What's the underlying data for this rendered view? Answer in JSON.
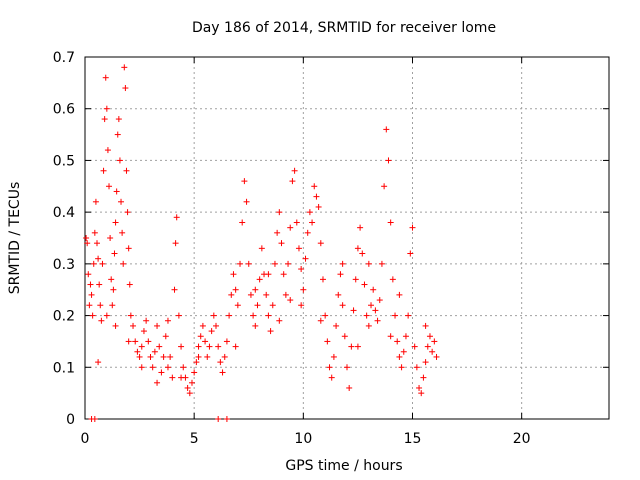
{
  "chart_data": {
    "type": "scatter",
    "title": "Day 186 of 2014, SRMTID for receiver lome",
    "xlabel": "GPS time / hours",
    "ylabel": "SRMTID / TECUs",
    "xlim": [
      0,
      24
    ],
    "ylim": [
      0,
      0.7
    ],
    "xticks": [
      0,
      5,
      10,
      15,
      20
    ],
    "yticks": [
      0,
      0.1,
      0.2,
      0.3,
      0.4,
      0.5,
      0.6,
      0.7
    ],
    "xtick_labels": [
      "0",
      "5",
      "10",
      "15",
      "20"
    ],
    "ytick_labels": [
      "0",
      "0.1",
      "0.2",
      "0.3",
      "0.4",
      "0.5",
      "0.6",
      "0.7"
    ],
    "grid": true,
    "marker": "+",
    "color": "#ff0000",
    "series": [
      {
        "name": "SRMTID",
        "points": [
          [
            0.05,
            0.35
          ],
          [
            0.1,
            0.34
          ],
          [
            0.15,
            0.28
          ],
          [
            0.2,
            0.22
          ],
          [
            0.25,
            0.26
          ],
          [
            0.3,
            0.24
          ],
          [
            0.35,
            0.2
          ],
          [
            0.4,
            0.3
          ],
          [
            0.45,
            0.36
          ],
          [
            0.5,
            0.42
          ],
          [
            0.55,
            0.34
          ],
          [
            0.6,
            0.31
          ],
          [
            0.65,
            0.26
          ],
          [
            0.7,
            0.22
          ],
          [
            0.75,
            0.19
          ],
          [
            0.8,
            0.3
          ],
          [
            0.85,
            0.48
          ],
          [
            0.9,
            0.58
          ],
          [
            0.95,
            0.66
          ],
          [
            1.0,
            0.6
          ],
          [
            1.05,
            0.52
          ],
          [
            1.1,
            0.45
          ],
          [
            1.15,
            0.35
          ],
          [
            1.2,
            0.27
          ],
          [
            1.25,
            0.22
          ],
          [
            1.3,
            0.25
          ],
          [
            1.35,
            0.32
          ],
          [
            1.4,
            0.38
          ],
          [
            1.45,
            0.44
          ],
          [
            1.5,
            0.55
          ],
          [
            1.55,
            0.58
          ],
          [
            1.6,
            0.5
          ],
          [
            1.65,
            0.42
          ],
          [
            1.7,
            0.36
          ],
          [
            1.75,
            0.3
          ],
          [
            1.8,
            0.68
          ],
          [
            1.85,
            0.64
          ],
          [
            1.9,
            0.48
          ],
          [
            1.95,
            0.4
          ],
          [
            2.0,
            0.33
          ],
          [
            2.05,
            0.26
          ],
          [
            2.1,
            0.2
          ],
          [
            2.2,
            0.18
          ],
          [
            2.3,
            0.15
          ],
          [
            2.4,
            0.13
          ],
          [
            2.5,
            0.12
          ],
          [
            2.6,
            0.14
          ],
          [
            2.7,
            0.17
          ],
          [
            2.8,
            0.19
          ],
          [
            2.9,
            0.15
          ],
          [
            3.0,
            0.12
          ],
          [
            3.1,
            0.1
          ],
          [
            3.2,
            0.13
          ],
          [
            3.3,
            0.18
          ],
          [
            3.4,
            0.14
          ],
          [
            3.5,
            0.09
          ],
          [
            3.6,
            0.12
          ],
          [
            3.7,
            0.16
          ],
          [
            3.8,
            0.19
          ],
          [
            3.9,
            0.12
          ],
          [
            4.0,
            0.08
          ],
          [
            4.1,
            0.25
          ],
          [
            4.15,
            0.34
          ],
          [
            4.2,
            0.39
          ],
          [
            4.3,
            0.2
          ],
          [
            4.4,
            0.14
          ],
          [
            4.5,
            0.1
          ],
          [
            4.6,
            0.08
          ],
          [
            4.7,
            0.06
          ],
          [
            4.8,
            0.05
          ],
          [
            4.9,
            0.07
          ],
          [
            5.0,
            0.09
          ],
          [
            5.1,
            0.11
          ],
          [
            5.2,
            0.14
          ],
          [
            5.3,
            0.16
          ],
          [
            5.4,
            0.18
          ],
          [
            5.5,
            0.15
          ],
          [
            5.6,
            0.12
          ],
          [
            5.7,
            0.14
          ],
          [
            5.8,
            0.17
          ],
          [
            5.9,
            0.2
          ],
          [
            6.0,
            0.18
          ],
          [
            6.1,
            0.14
          ],
          [
            6.2,
            0.11
          ],
          [
            6.3,
            0.09
          ],
          [
            6.4,
            0.12
          ],
          [
            6.5,
            0.15
          ],
          [
            6.6,
            0.2
          ],
          [
            6.7,
            0.24
          ],
          [
            6.8,
            0.28
          ],
          [
            6.9,
            0.25
          ],
          [
            7.0,
            0.22
          ],
          [
            7.1,
            0.3
          ],
          [
            7.2,
            0.38
          ],
          [
            7.3,
            0.46
          ],
          [
            7.4,
            0.42
          ],
          [
            7.5,
            0.3
          ],
          [
            7.6,
            0.24
          ],
          [
            7.7,
            0.2
          ],
          [
            7.8,
            0.18
          ],
          [
            7.9,
            0.22
          ],
          [
            8.0,
            0.27
          ],
          [
            8.1,
            0.33
          ],
          [
            8.2,
            0.28
          ],
          [
            8.3,
            0.24
          ],
          [
            8.4,
            0.2
          ],
          [
            8.5,
            0.17
          ],
          [
            8.6,
            0.22
          ],
          [
            8.7,
            0.3
          ],
          [
            8.8,
            0.36
          ],
          [
            8.9,
            0.4
          ],
          [
            9.0,
            0.34
          ],
          [
            9.1,
            0.28
          ],
          [
            9.2,
            0.24
          ],
          [
            9.3,
            0.3
          ],
          [
            9.4,
            0.37
          ],
          [
            9.5,
            0.46
          ],
          [
            9.6,
            0.48
          ],
          [
            9.7,
            0.38
          ],
          [
            9.8,
            0.33
          ],
          [
            9.9,
            0.29
          ],
          [
            10.0,
            0.25
          ],
          [
            10.1,
            0.31
          ],
          [
            10.2,
            0.36
          ],
          [
            10.3,
            0.4
          ],
          [
            10.4,
            0.38
          ],
          [
            10.5,
            0.45
          ],
          [
            10.6,
            0.43
          ],
          [
            10.7,
            0.41
          ],
          [
            10.8,
            0.34
          ],
          [
            10.9,
            0.27
          ],
          [
            11.0,
            0.2
          ],
          [
            11.1,
            0.15
          ],
          [
            11.2,
            0.1
          ],
          [
            11.3,
            0.08
          ],
          [
            11.4,
            0.12
          ],
          [
            11.5,
            0.18
          ],
          [
            11.6,
            0.24
          ],
          [
            11.7,
            0.28
          ],
          [
            11.8,
            0.22
          ],
          [
            11.9,
            0.16
          ],
          [
            12.0,
            0.1
          ],
          [
            12.1,
            0.06
          ],
          [
            12.2,
            0.14
          ],
          [
            12.3,
            0.21
          ],
          [
            12.4,
            0.27
          ],
          [
            12.5,
            0.33
          ],
          [
            12.6,
            0.37
          ],
          [
            12.7,
            0.32
          ],
          [
            12.8,
            0.26
          ],
          [
            12.9,
            0.2
          ],
          [
            13.0,
            0.18
          ],
          [
            13.1,
            0.22
          ],
          [
            13.2,
            0.25
          ],
          [
            13.3,
            0.21
          ],
          [
            13.4,
            0.19
          ],
          [
            13.5,
            0.23
          ],
          [
            13.6,
            0.3
          ],
          [
            13.7,
            0.45
          ],
          [
            13.8,
            0.56
          ],
          [
            13.9,
            0.5
          ],
          [
            14.0,
            0.38
          ],
          [
            14.1,
            0.27
          ],
          [
            14.2,
            0.2
          ],
          [
            14.3,
            0.15
          ],
          [
            14.4,
            0.12
          ],
          [
            14.5,
            0.1
          ],
          [
            14.6,
            0.13
          ],
          [
            14.7,
            0.16
          ],
          [
            14.8,
            0.2
          ],
          [
            14.9,
            0.32
          ],
          [
            15.0,
            0.37
          ],
          [
            15.1,
            0.14
          ],
          [
            15.2,
            0.1
          ],
          [
            15.3,
            0.06
          ],
          [
            15.4,
            0.05
          ],
          [
            15.5,
            0.08
          ],
          [
            15.6,
            0.11
          ],
          [
            15.7,
            0.14
          ],
          [
            15.8,
            0.16
          ],
          [
            15.9,
            0.13
          ],
          [
            16.0,
            0.15
          ],
          [
            16.1,
            0.12
          ],
          [
            0.3,
            0.0
          ],
          [
            0.45,
            0.0
          ],
          [
            6.1,
            0.0
          ],
          [
            6.5,
            0.0
          ],
          [
            1.0,
            0.2
          ],
          [
            2.6,
            0.1
          ],
          [
            3.8,
            0.1
          ],
          [
            4.4,
            0.08
          ],
          [
            5.2,
            0.12
          ],
          [
            7.8,
            0.25
          ],
          [
            8.9,
            0.19
          ],
          [
            9.4,
            0.23
          ],
          [
            10.8,
            0.19
          ],
          [
            11.8,
            0.3
          ],
          [
            13.0,
            0.3
          ],
          [
            14.4,
            0.24
          ],
          [
            15.6,
            0.18
          ],
          [
            1.4,
            0.18
          ],
          [
            0.6,
            0.11
          ],
          [
            2.0,
            0.15
          ],
          [
            3.3,
            0.07
          ],
          [
            6.9,
            0.14
          ],
          [
            8.4,
            0.28
          ],
          [
            9.9,
            0.22
          ],
          [
            12.5,
            0.14
          ],
          [
            14.0,
            0.16
          ]
        ]
      }
    ]
  }
}
